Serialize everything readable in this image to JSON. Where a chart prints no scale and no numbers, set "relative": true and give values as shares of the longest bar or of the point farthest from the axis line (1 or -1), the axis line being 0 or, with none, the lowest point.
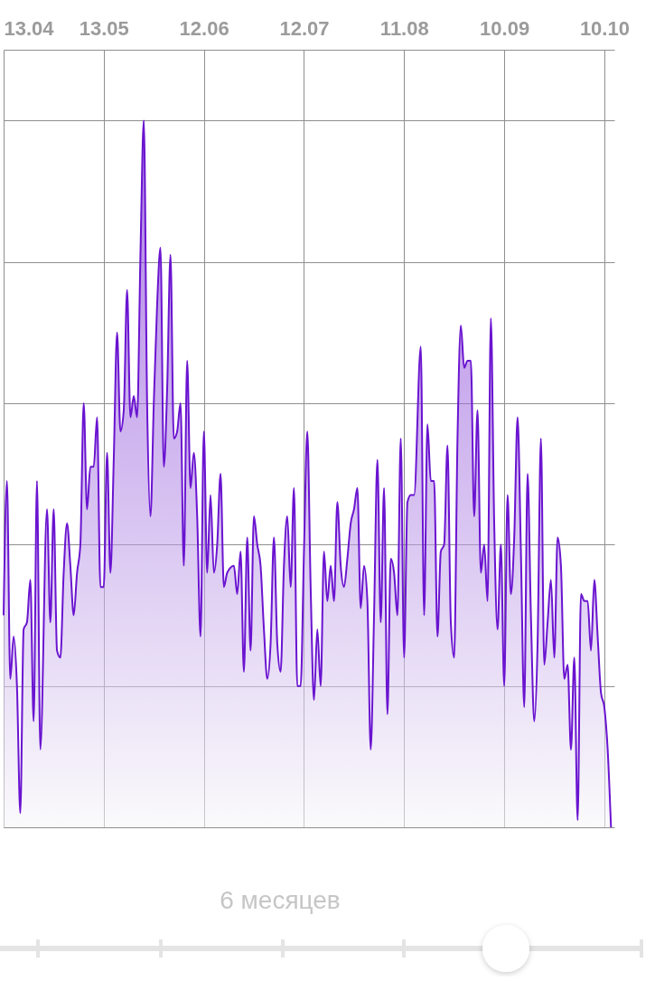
{
  "chart_data": {
    "type": "area",
    "relative": true,
    "grid": true,
    "marker": "none",
    "xlim": [
      "--04-13",
      "--10-13"
    ],
    "xticks": [
      {
        "value": "--04-13",
        "label": "13.04"
      },
      {
        "value": "--05-13",
        "label": "13.05"
      },
      {
        "value": "--06-12",
        "label": "12.06"
      },
      {
        "value": "--07-12",
        "label": "12.07"
      },
      {
        "value": "--08-11",
        "label": "11.08"
      },
      {
        "value": "--09-10",
        "label": "10.09"
      },
      {
        "value": "--10-10",
        "label": "10.10"
      }
    ],
    "annotations": [
      "6 месяцев"
    ],
    "series": [
      {
        "color": "#6a14d0",
        "x": [
          "--04-13",
          "--04-14",
          "--04-15",
          "--04-16",
          "--04-17",
          "--04-18",
          "--04-19",
          "--04-20",
          "--04-21",
          "--04-22",
          "--04-23",
          "--04-24",
          "--04-26",
          "--04-27",
          "--04-28",
          "--04-29",
          "--04-30",
          "--05-01",
          "--05-02",
          "--05-03",
          "--05-04",
          "--05-05",
          "--05-06",
          "--05-07",
          "--05-08",
          "--05-09",
          "--05-10",
          "--05-11",
          "--05-12",
          "--05-13",
          "--05-14",
          "--05-15",
          "--05-16",
          "--05-17",
          "--05-18",
          "--05-19",
          "--05-20",
          "--05-21",
          "--05-22",
          "--05-23",
          "--05-24",
          "--05-25",
          "--05-26",
          "--05-27",
          "--05-28",
          "--05-29",
          "--05-30",
          "--05-31",
          "--06-01",
          "--06-02",
          "--06-03",
          "--06-04",
          "--06-05",
          "--06-06",
          "--06-07",
          "--06-08",
          "--06-09",
          "--06-10",
          "--06-11",
          "--06-12",
          "--06-13",
          "--06-14",
          "--06-15",
          "--06-16",
          "--06-17",
          "--06-18",
          "--06-19",
          "--06-21",
          "--06-22",
          "--06-23",
          "--06-24",
          "--06-25",
          "--06-26",
          "--06-27",
          "--06-28",
          "--06-29",
          "--06-30",
          "--07-01",
          "--07-02",
          "--07-03",
          "--07-04",
          "--07-05",
          "--07-06",
          "--07-07",
          "--07-08",
          "--07-09",
          "--07-10",
          "--07-11",
          "--07-12",
          "--07-13",
          "--07-14",
          "--07-15",
          "--07-16",
          "--07-17",
          "--07-18",
          "--07-19",
          "--07-20",
          "--07-21",
          "--07-22",
          "--07-23",
          "--07-24",
          "--07-25",
          "--07-26",
          "--07-27",
          "--07-28",
          "--07-29",
          "--07-30",
          "--07-31",
          "--08-01",
          "--08-02",
          "--08-03",
          "--08-04",
          "--08-05",
          "--08-06",
          "--08-07",
          "--08-08",
          "--08-09",
          "--08-10",
          "--08-11",
          "--08-12",
          "--08-13",
          "--08-14",
          "--08-16",
          "--08-17",
          "--08-18",
          "--08-19",
          "--08-20",
          "--08-21",
          "--08-22",
          "--08-23",
          "--08-24",
          "--08-25",
          "--08-26",
          "--08-27",
          "--08-28",
          "--08-29",
          "--08-30",
          "--08-31",
          "--09-01",
          "--09-02",
          "--09-03",
          "--09-04",
          "--09-05",
          "--09-06",
          "--09-07",
          "--09-08",
          "--09-09",
          "--09-10",
          "--09-11",
          "--09-12",
          "--09-13",
          "--09-14",
          "--09-15",
          "--09-16",
          "--09-17",
          "--09-18",
          "--09-19",
          "--09-20",
          "--09-21",
          "--09-22",
          "--09-23",
          "--09-24",
          "--09-25",
          "--09-26",
          "--09-27",
          "--09-28",
          "--09-29",
          "--09-30",
          "--10-01",
          "--10-02",
          "--10-03",
          "--10-04",
          "--10-05",
          "--10-06",
          "--10-07",
          "--10-08",
          "--10-09",
          "--10-10",
          "--10-11",
          "--10-12"
        ],
        "values": [
          0.3,
          0.49,
          0.21,
          0.27,
          0.2,
          0.02,
          0.28,
          0.29,
          0.35,
          0.15,
          0.49,
          0.11,
          0.45,
          0.29,
          0.45,
          0.25,
          0.24,
          0.36,
          0.43,
          0.37,
          0.3,
          0.36,
          0.4,
          0.6,
          0.45,
          0.51,
          0.51,
          0.58,
          0.34,
          0.34,
          0.53,
          0.36,
          0.52,
          0.7,
          0.56,
          0.59,
          0.76,
          0.58,
          0.61,
          0.58,
          0.81,
          1.0,
          0.6,
          0.44,
          0.6,
          0.74,
          0.82,
          0.51,
          0.62,
          0.81,
          0.55,
          0.56,
          0.6,
          0.37,
          0.66,
          0.48,
          0.53,
          0.44,
          0.27,
          0.56,
          0.36,
          0.47,
          0.36,
          0.4,
          0.5,
          0.34,
          0.36,
          0.37,
          0.33,
          0.39,
          0.22,
          0.41,
          0.25,
          0.44,
          0.4,
          0.37,
          0.28,
          0.21,
          0.26,
          0.41,
          0.26,
          0.22,
          0.37,
          0.44,
          0.34,
          0.48,
          0.2,
          0.2,
          0.39,
          0.56,
          0.34,
          0.18,
          0.28,
          0.2,
          0.39,
          0.32,
          0.37,
          0.32,
          0.46,
          0.37,
          0.34,
          0.38,
          0.43,
          0.45,
          0.48,
          0.31,
          0.37,
          0.32,
          0.11,
          0.3,
          0.52,
          0.29,
          0.48,
          0.16,
          0.38,
          0.36,
          0.3,
          0.55,
          0.24,
          0.46,
          0.47,
          0.47,
          0.68,
          0.3,
          0.57,
          0.49,
          0.49,
          0.27,
          0.39,
          0.4,
          0.54,
          0.29,
          0.24,
          0.55,
          0.71,
          0.65,
          0.66,
          0.66,
          0.44,
          0.59,
          0.36,
          0.4,
          0.32,
          0.72,
          0.43,
          0.28,
          0.4,
          0.2,
          0.47,
          0.33,
          0.41,
          0.58,
          0.39,
          0.17,
          0.5,
          0.3,
          0.15,
          0.26,
          0.55,
          0.23,
          0.29,
          0.35,
          0.24,
          0.41,
          0.37,
          0.21,
          0.23,
          0.11,
          0.24,
          0.01,
          0.33,
          0.32,
          0.32,
          0.25,
          0.35,
          0.27,
          0.19,
          0.17,
          0.11,
          0
        ]
      }
    ]
  }
}
